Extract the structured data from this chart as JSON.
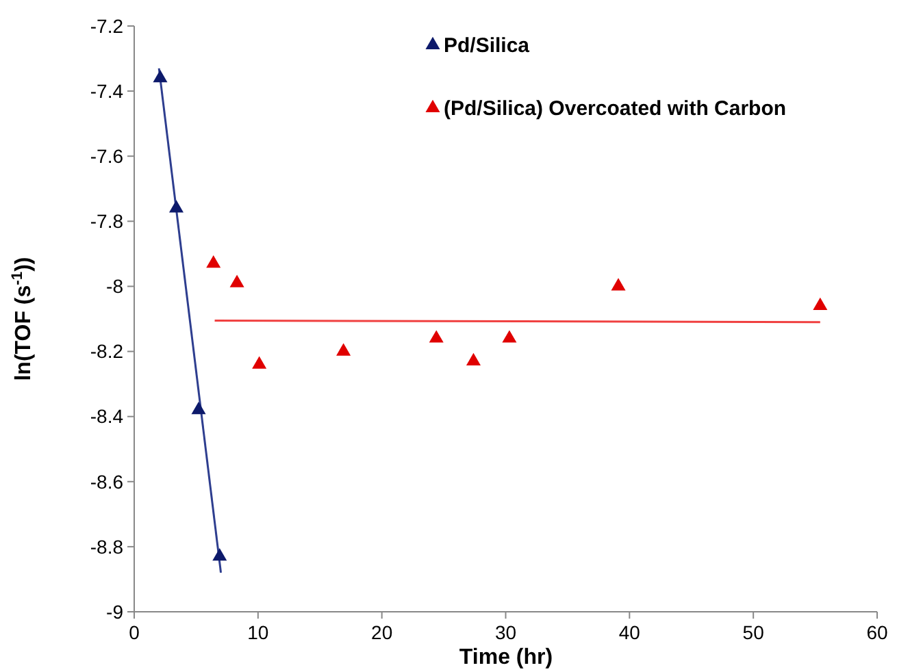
{
  "chart_data": {
    "type": "scatter",
    "xlabel": "Time (hr)",
    "ylabel": "ln(TOF (s$^{-1}$))",
    "xlim": [
      0,
      60
    ],
    "ylim": [
      -9,
      -7.2
    ],
    "xticks": [
      0,
      10,
      20,
      30,
      40,
      50,
      60
    ],
    "yticks": [
      -9,
      -8.8,
      -8.6,
      -8.4,
      -8.2,
      -8,
      -7.8,
      -7.6,
      -7.4,
      -7.2
    ],
    "grid": false,
    "legend": "top right",
    "series": [
      {
        "name": "Pd/Silica",
        "color": "#0d1a6b",
        "marker": "triangle",
        "x": [
          2.1,
          3.4,
          5.2,
          6.9
        ],
        "values": [
          -7.36,
          -7.76,
          -8.38,
          -8.83
        ]
      },
      {
        "name": "(Pd/Silica) Overcoated with Carbon",
        "color": "#e00000",
        "marker": "triangle",
        "x": [
          6.4,
          8.3,
          10.1,
          16.9,
          24.4,
          27.4,
          30.3,
          39.1,
          55.4
        ],
        "values": [
          -7.93,
          -7.99,
          -8.24,
          -8.2,
          -8.16,
          -8.23,
          -8.16,
          -8,
          -8.06
        ]
      },
      {
        "type": "line",
        "color": "#2e3e8f",
        "x": [
          2,
          7
        ],
        "values": [
          -7.33,
          -8.88
        ]
      },
      {
        "type": "line",
        "color": "#f04040",
        "x": [
          6.5,
          55.4
        ],
        "values": [
          -8.105,
          -8.11
        ]
      }
    ]
  }
}
